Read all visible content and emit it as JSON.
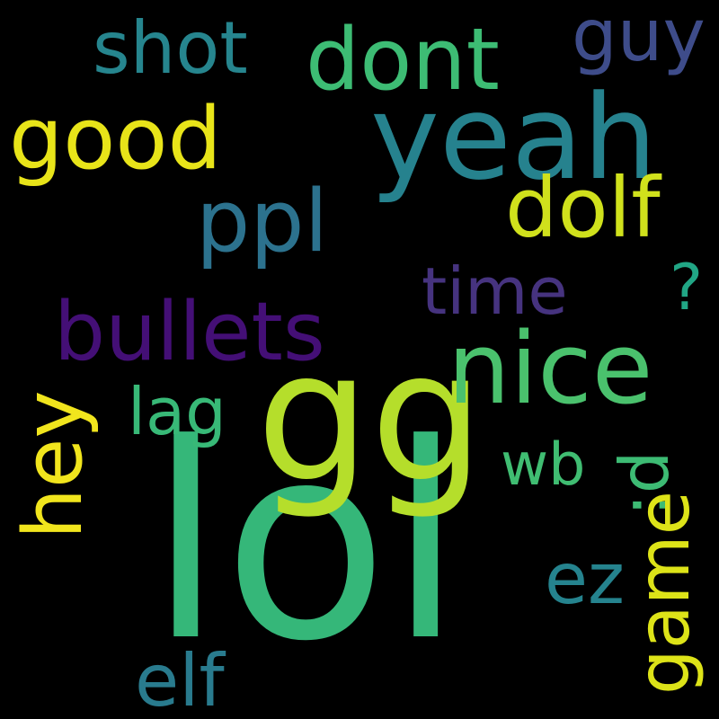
{
  "word_cloud": {
    "background": "#000000",
    "words": {
      "lol": {
        "text": "lol",
        "color": "#35b779"
      },
      "gg": {
        "text": "gg",
        "color": "#b5de2b"
      },
      "yeah": {
        "text": "yeah",
        "color": "#26828e"
      },
      "nice": {
        "text": "nice",
        "color": "#4ac16d"
      },
      "dont": {
        "text": "dont",
        "color": "#3dbc74"
      },
      "ppl": {
        "text": "ppl",
        "color": "#2c728e"
      },
      "bullets": {
        "text": "bullets",
        "color": "#440f76"
      },
      "good": {
        "text": "good",
        "color": "#e8e419"
      },
      "dolf": {
        "text": "dolf",
        "color": "#d0e11c"
      },
      "shot": {
        "text": "shot",
        "color": "#26858e"
      },
      "guy": {
        "text": "guy",
        "color": "#3e4c8a"
      },
      "time": {
        "text": "time",
        "color": "#46337f"
      },
      "lag": {
        "text": "lag",
        "color": "#38b977"
      },
      "wb": {
        "text": "wb",
        "color": "#40bd72"
      },
      "ez": {
        "text": "ez",
        "color": "#25838e"
      },
      "elf": {
        "text": "elf",
        "color": "#297b8e"
      },
      "question": {
        "text": "?",
        "color": "#21a685"
      },
      "hey": {
        "text": "hey",
        "color": "#f1e51d"
      },
      "d": {
        "text": ":d",
        "color": "#3dbb74"
      },
      "game": {
        "text": "game",
        "color": "#dde318"
      }
    }
  }
}
